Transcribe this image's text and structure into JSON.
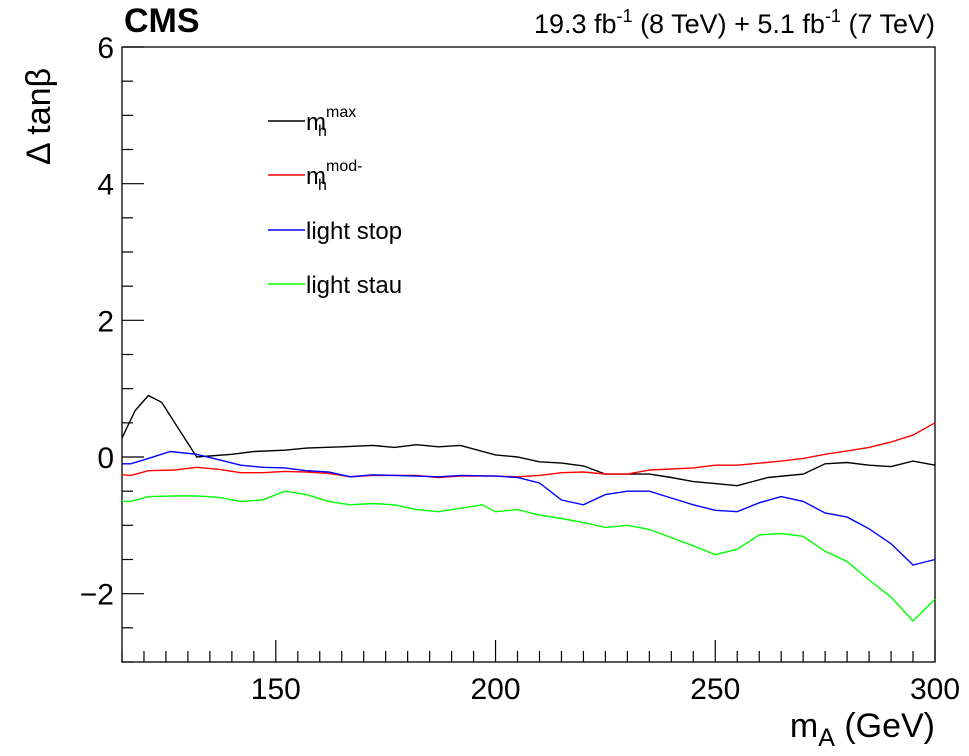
{
  "header": {
    "experiment": "CMS",
    "lumi_text": "19.3 fb^{-1} (8 TeV) + 5.1 fb^{-1} (7 TeV)",
    "lumi_parts": {
      "a": "19.3 fb",
      "a_sup": "-1",
      "b": " (8 TeV) + 5.1 fb",
      "b_sup": "-1",
      "c": " (7 TeV)"
    }
  },
  "chart_data": {
    "type": "line",
    "title": "",
    "xlabel": "m_A (GeV)",
    "ylabel": "Δ tanβ",
    "xlabel_parts": {
      "main": "m",
      "sub": "A",
      "rest": " (GeV)"
    },
    "ylabel_parts": {
      "delta": "Δ",
      "rest": " tanβ"
    },
    "xlim": [
      115,
      300
    ],
    "ylim": [
      -3,
      6
    ],
    "x_ticks": [
      150,
      200,
      250,
      300
    ],
    "x_tick_labels": [
      "150",
      "200",
      "250",
      "300"
    ],
    "y_ticks": [
      -2,
      0,
      2,
      4,
      6
    ],
    "y_tick_labels": [
      "−2",
      "0",
      "2",
      "4",
      "6"
    ],
    "x_minor_step": 5,
    "y_minor_step": 0.5,
    "grid": false,
    "legend_position": "top-left",
    "series": [
      {
        "name": "m_h^max",
        "label_main": "m",
        "label_sub": "h",
        "label_sup": "max",
        "color": "#000000",
        "points": [
          [
            115,
            0.28
          ],
          [
            118,
            0.68
          ],
          [
            121,
            0.9
          ],
          [
            124,
            0.8
          ],
          [
            132,
            0.0
          ],
          [
            140,
            0.04
          ],
          [
            145,
            0.08
          ],
          [
            152,
            0.1
          ],
          [
            157,
            0.13
          ],
          [
            165,
            0.15
          ],
          [
            172,
            0.17
          ],
          [
            177,
            0.14
          ],
          [
            182,
            0.18
          ],
          [
            187,
            0.15
          ],
          [
            192,
            0.17
          ],
          [
            200,
            0.03
          ],
          [
            205,
            0.0
          ],
          [
            210,
            -0.07
          ],
          [
            215,
            -0.09
          ],
          [
            220,
            -0.13
          ],
          [
            225,
            -0.25
          ],
          [
            235,
            -0.25
          ],
          [
            240,
            -0.3
          ],
          [
            245,
            -0.36
          ],
          [
            250,
            -0.39
          ],
          [
            255,
            -0.42
          ],
          [
            262,
            -0.3
          ],
          [
            270,
            -0.25
          ],
          [
            275,
            -0.1
          ],
          [
            280,
            -0.08
          ],
          [
            285,
            -0.12
          ],
          [
            290,
            -0.14
          ],
          [
            295,
            -0.06
          ],
          [
            300,
            -0.12
          ]
        ]
      },
      {
        "name": "m_h^mod-",
        "label_main": "m",
        "label_sub": "h",
        "label_sup": "mod-",
        "color": "#ff0000",
        "points": [
          [
            115,
            -0.26
          ],
          [
            117,
            -0.27
          ],
          [
            121,
            -0.2
          ],
          [
            127,
            -0.19
          ],
          [
            132,
            -0.15
          ],
          [
            137,
            -0.18
          ],
          [
            142,
            -0.23
          ],
          [
            147,
            -0.23
          ],
          [
            152,
            -0.21
          ],
          [
            157,
            -0.22
          ],
          [
            162,
            -0.24
          ],
          [
            167,
            -0.29
          ],
          [
            172,
            -0.27
          ],
          [
            177,
            -0.27
          ],
          [
            182,
            -0.27
          ],
          [
            187,
            -0.3
          ],
          [
            192,
            -0.28
          ],
          [
            200,
            -0.28
          ],
          [
            205,
            -0.29
          ],
          [
            210,
            -0.27
          ],
          [
            215,
            -0.23
          ],
          [
            220,
            -0.22
          ],
          [
            225,
            -0.25
          ],
          [
            230,
            -0.25
          ],
          [
            235,
            -0.19
          ],
          [
            245,
            -0.16
          ],
          [
            250,
            -0.12
          ],
          [
            255,
            -0.12
          ],
          [
            265,
            -0.06
          ],
          [
            270,
            -0.02
          ],
          [
            275,
            0.04
          ],
          [
            280,
            0.09
          ],
          [
            285,
            0.14
          ],
          [
            290,
            0.22
          ],
          [
            295,
            0.32
          ],
          [
            300,
            0.5
          ]
        ]
      },
      {
        "name": "light stop",
        "label_main": "light stop",
        "label_sub": "",
        "label_sup": "",
        "color": "#0000ff",
        "points": [
          [
            115,
            -0.1
          ],
          [
            117,
            -0.1
          ],
          [
            121,
            -0.02
          ],
          [
            126,
            0.08
          ],
          [
            132,
            0.04
          ],
          [
            137,
            -0.04
          ],
          [
            142,
            -0.12
          ],
          [
            147,
            -0.15
          ],
          [
            152,
            -0.16
          ],
          [
            157,
            -0.2
          ],
          [
            162,
            -0.22
          ],
          [
            167,
            -0.29
          ],
          [
            172,
            -0.26
          ],
          [
            177,
            -0.27
          ],
          [
            182,
            -0.28
          ],
          [
            187,
            -0.29
          ],
          [
            192,
            -0.27
          ],
          [
            200,
            -0.28
          ],
          [
            205,
            -0.3
          ],
          [
            210,
            -0.38
          ],
          [
            215,
            -0.63
          ],
          [
            220,
            -0.7
          ],
          [
            225,
            -0.55
          ],
          [
            230,
            -0.5
          ],
          [
            235,
            -0.5
          ],
          [
            240,
            -0.6
          ],
          [
            245,
            -0.7
          ],
          [
            250,
            -0.78
          ],
          [
            255,
            -0.8
          ],
          [
            260,
            -0.67
          ],
          [
            265,
            -0.58
          ],
          [
            270,
            -0.65
          ],
          [
            275,
            -0.82
          ],
          [
            280,
            -0.88
          ],
          [
            285,
            -1.05
          ],
          [
            290,
            -1.27
          ],
          [
            295,
            -1.58
          ],
          [
            300,
            -1.5
          ]
        ]
      },
      {
        "name": "light stau",
        "label_main": "light stau",
        "label_sub": "",
        "label_sup": "",
        "color": "#00ff00",
        "points": [
          [
            115,
            -0.65
          ],
          [
            117,
            -0.65
          ],
          [
            121,
            -0.58
          ],
          [
            127,
            -0.57
          ],
          [
            132,
            -0.57
          ],
          [
            137,
            -0.59
          ],
          [
            142,
            -0.65
          ],
          [
            147,
            -0.63
          ],
          [
            152,
            -0.5
          ],
          [
            157,
            -0.55
          ],
          [
            162,
            -0.65
          ],
          [
            167,
            -0.7
          ],
          [
            172,
            -0.68
          ],
          [
            177,
            -0.7
          ],
          [
            182,
            -0.77
          ],
          [
            187,
            -0.8
          ],
          [
            192,
            -0.75
          ],
          [
            197,
            -0.7
          ],
          [
            200,
            -0.8
          ],
          [
            205,
            -0.77
          ],
          [
            210,
            -0.85
          ],
          [
            215,
            -0.9
          ],
          [
            220,
            -0.96
          ],
          [
            225,
            -1.03
          ],
          [
            230,
            -1.0
          ],
          [
            235,
            -1.06
          ],
          [
            240,
            -1.18
          ],
          [
            245,
            -1.3
          ],
          [
            250,
            -1.43
          ],
          [
            255,
            -1.35
          ],
          [
            260,
            -1.14
          ],
          [
            265,
            -1.12
          ],
          [
            270,
            -1.16
          ],
          [
            275,
            -1.38
          ],
          [
            280,
            -1.53
          ],
          [
            285,
            -1.8
          ],
          [
            290,
            -2.05
          ],
          [
            295,
            -2.4
          ],
          [
            300,
            -2.08
          ]
        ]
      }
    ]
  }
}
